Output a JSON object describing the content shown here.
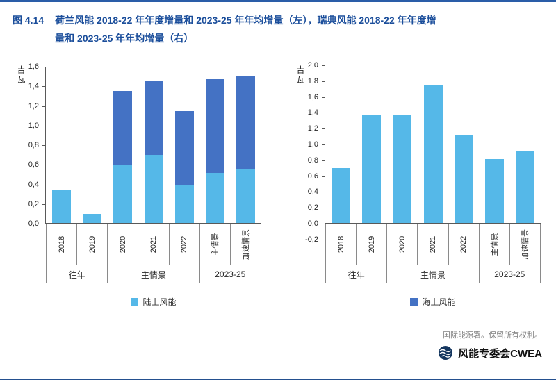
{
  "figure": {
    "label": "图 4.14",
    "title_line1": "荷兰风能 2018-22 年年度增量和 2023-25 年年均增量（左），瑞典风能 2018-22 年年度增",
    "title_line2": "量和 2023-25 年年均增量（右）",
    "title_color": "#1b4e9b"
  },
  "footer": {
    "copyright": "国际能源署。保留所有权利。",
    "logo_text": "风能专委会CWEA"
  },
  "colors": {
    "onshore": "#55b8e8",
    "offshore": "#4472c4",
    "rule": "#2a5da8"
  },
  "chart_data": [
    {
      "type": "bar",
      "stacked": true,
      "name": "荷兰风能（左）",
      "ylabel": "吉瓦",
      "ylim": [
        0,
        1.6
      ],
      "yticks": [
        1.6,
        1.4,
        1.2,
        1.0,
        0.8,
        0.6,
        0.4,
        0.2,
        0.0
      ],
      "ytick_labels": [
        "1,6",
        "1,4",
        "1,2",
        "1,0",
        "0,8",
        "0,6",
        "0,4",
        "0,2",
        "0,0"
      ],
      "categories": [
        "2018",
        "2019",
        "2020",
        "2021",
        "2022",
        "主情景",
        "加速情景"
      ],
      "category_groups": [
        {
          "label": "往年",
          "span": 2
        },
        {
          "label": "主情景",
          "span": 3
        },
        {
          "label": "2023-25",
          "span": 2
        }
      ],
      "series": [
        {
          "name": "陆上风能",
          "color": "#55b8e8",
          "values": [
            0.35,
            0.1,
            0.6,
            0.7,
            0.4,
            0.52,
            0.55
          ]
        },
        {
          "name": "海上风能",
          "color": "#4472c4",
          "values": [
            0,
            0,
            0.75,
            0.75,
            0.75,
            0.95,
            0.95
          ]
        }
      ],
      "legend": {
        "label": "陆上风能",
        "color": "#55b8e8"
      },
      "grid": false,
      "legend_position": "bottom"
    },
    {
      "type": "bar",
      "stacked": true,
      "name": "瑞典风能（右）",
      "ylabel": "吉瓦",
      "ylim": [
        -0.2,
        2.0
      ],
      "yticks": [
        2.0,
        1.8,
        1.6,
        1.4,
        1.2,
        1.0,
        0.8,
        0.6,
        0.4,
        0.2,
        0.0,
        -0.2
      ],
      "ytick_labels": [
        "2,0",
        "1,8",
        "1,6",
        "1,4",
        "1,2",
        "1,0",
        "0,8",
        "0,6",
        "0,4",
        "0,2",
        "0,0",
        "-0,2"
      ],
      "categories": [
        "2018",
        "2019",
        "2020",
        "2021",
        "2022",
        "主情景",
        "加速情景"
      ],
      "category_groups": [
        {
          "label": "往年",
          "span": 2
        },
        {
          "label": "主情景",
          "span": 3
        },
        {
          "label": "2023-25",
          "span": 2
        }
      ],
      "series": [
        {
          "name": "陆上风能",
          "color": "#55b8e8",
          "values": [
            0.7,
            1.38,
            1.37,
            1.75,
            1.12,
            0.82,
            0.92
          ]
        }
      ],
      "legend": {
        "label": "海上风能",
        "color": "#4472c4"
      },
      "grid": false,
      "legend_position": "bottom"
    }
  ]
}
